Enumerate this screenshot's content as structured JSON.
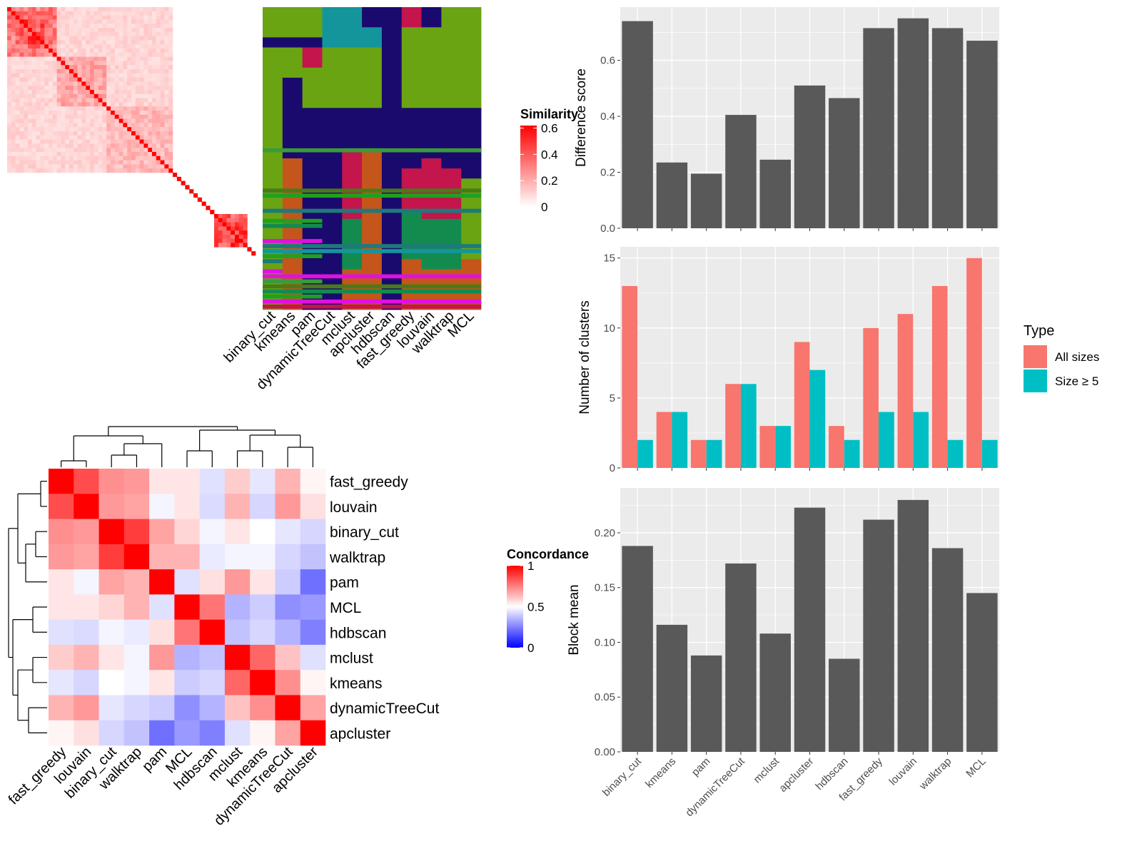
{
  "colors": {
    "hm_low": "#ffffff",
    "hm_high": "#ff0000",
    "conc_low": "#0000ff",
    "conc_mid": "#ffffff",
    "conc_high": "#ff0000",
    "bar_fill": "#595959",
    "panel_bg": "#ebebeb",
    "grid": "#ffffff",
    "all_sizes": "#f8766d",
    "size5": "#00bfc4",
    "cluster_palette": [
      "#1a0a6e",
      "#6aa412",
      "#c4154c",
      "#14959c",
      "#c4561b",
      "#138b4f",
      "#20a020",
      "#e010e0",
      "#1e7a7a",
      "#4a7a18",
      "#3a9a3a"
    ]
  },
  "chart_data": [
    {
      "type": "heatmap",
      "panel": "similarity",
      "legend_title": "Similarity",
      "legend_ticks": [
        "0.6",
        "0.4",
        "0.2",
        "0"
      ],
      "legend_values": [
        0.6,
        0.4,
        0.2,
        0
      ],
      "n_items": 60,
      "blocks": [
        [
          0,
          12,
          0.38
        ],
        [
          12,
          24,
          0.25
        ],
        [
          3,
          9,
          0.52
        ],
        [
          24,
          40,
          0.2
        ],
        [
          0,
          40,
          0.12
        ],
        [
          50,
          58,
          0.45
        ],
        [
          53,
          58,
          0.55
        ]
      ],
      "diagonal": 0.62
    },
    {
      "type": "heatmap",
      "panel": "cluster_assignments",
      "columns": [
        "binary_cut",
        "kmeans",
        "pam",
        "dynamicTreeCut",
        "mclust",
        "apcluster",
        "hdbscan",
        "fast_greedy",
        "louvain",
        "walktrap",
        "MCL"
      ],
      "segments": [
        [
          [
            0,
            6,
            1
          ],
          [
            6,
            8,
            0
          ],
          [
            8,
            60,
            1
          ]
        ],
        [
          [
            0,
            6,
            1
          ],
          [
            6,
            8,
            0
          ],
          [
            8,
            14,
            1
          ],
          [
            14,
            30,
            0
          ],
          [
            30,
            60,
            4
          ]
        ],
        [
          [
            0,
            6,
            1
          ],
          [
            6,
            8,
            0
          ],
          [
            8,
            12,
            2
          ],
          [
            12,
            20,
            1
          ],
          [
            20,
            30,
            0
          ],
          [
            30,
            60,
            0
          ]
        ],
        [
          [
            0,
            8,
            3
          ],
          [
            8,
            20,
            1
          ],
          [
            20,
            30,
            0
          ],
          [
            30,
            60,
            0
          ]
        ],
        [
          [
            0,
            8,
            3
          ],
          [
            8,
            20,
            1
          ],
          [
            20,
            28,
            0
          ],
          [
            28,
            42,
            2
          ],
          [
            42,
            52,
            5
          ],
          [
            52,
            60,
            4
          ]
        ],
        [
          [
            0,
            4,
            0
          ],
          [
            4,
            8,
            3
          ],
          [
            8,
            20,
            1
          ],
          [
            20,
            28,
            0
          ],
          [
            28,
            34,
            4
          ],
          [
            34,
            60,
            4
          ]
        ],
        [
          [
            0,
            60,
            0
          ]
        ],
        [
          [
            0,
            4,
            2
          ],
          [
            4,
            20,
            1
          ],
          [
            20,
            32,
            0
          ],
          [
            32,
            40,
            2
          ],
          [
            40,
            50,
            5
          ],
          [
            50,
            60,
            4
          ]
        ],
        [
          [
            0,
            4,
            0
          ],
          [
            4,
            20,
            1
          ],
          [
            20,
            30,
            0
          ],
          [
            30,
            42,
            2
          ],
          [
            42,
            52,
            5
          ],
          [
            52,
            60,
            4
          ]
        ],
        [
          [
            0,
            20,
            1
          ],
          [
            20,
            32,
            0
          ],
          [
            32,
            42,
            2
          ],
          [
            42,
            52,
            5
          ],
          [
            52,
            60,
            4
          ]
        ],
        [
          [
            0,
            20,
            1
          ],
          [
            20,
            34,
            0
          ],
          [
            34,
            50,
            1
          ],
          [
            50,
            60,
            4
          ]
        ]
      ],
      "stripes": [
        [
          28,
          0,
          11,
          10
        ],
        [
          36,
          0,
          11,
          9
        ],
        [
          37,
          0,
          11,
          6
        ],
        [
          40,
          0,
          11,
          8
        ],
        [
          42,
          0,
          3,
          6
        ],
        [
          43,
          0,
          3,
          5
        ],
        [
          46,
          0,
          3,
          7
        ],
        [
          47,
          0,
          11,
          8
        ],
        [
          48,
          0,
          11,
          3
        ],
        [
          49,
          0,
          3,
          6
        ],
        [
          50,
          0,
          1,
          8
        ],
        [
          52,
          0,
          1,
          7
        ],
        [
          53,
          0,
          11,
          7
        ],
        [
          54,
          0,
          3,
          10
        ],
        [
          55,
          0,
          11,
          9
        ],
        [
          56,
          0,
          11,
          5
        ],
        [
          57,
          0,
          3,
          6
        ],
        [
          58,
          0,
          11,
          7
        ],
        [
          59,
          0,
          11,
          2
        ]
      ]
    },
    {
      "type": "heatmap",
      "panel": "concordance",
      "legend_title": "Concordance",
      "legend_ticks": [
        "1",
        "0.5",
        "0"
      ],
      "legend_values": [
        1,
        0.5,
        0
      ],
      "rows": [
        "fast_greedy",
        "louvain",
        "binary_cut",
        "walktrap",
        "pam",
        "MCL",
        "hdbscan",
        "mclust",
        "kmeans",
        "dynamicTreeCut",
        "apcluster"
      ],
      "columns": [
        "fast_greedy",
        "louvain",
        "binary_cut",
        "walktrap",
        "pam",
        "MCL",
        "hdbscan",
        "mclust",
        "kmeans",
        "dynamicTreeCut",
        "apcluster"
      ],
      "values": [
        [
          1.0,
          0.85,
          0.72,
          0.7,
          0.55,
          0.55,
          0.44,
          0.6,
          0.45,
          0.65,
          0.52
        ],
        [
          0.85,
          1.0,
          0.7,
          0.68,
          0.48,
          0.55,
          0.43,
          0.65,
          0.42,
          0.7,
          0.56
        ],
        [
          0.72,
          0.7,
          1.0,
          0.88,
          0.68,
          0.58,
          0.48,
          0.55,
          0.5,
          0.45,
          0.42
        ],
        [
          0.7,
          0.68,
          0.88,
          1.0,
          0.65,
          0.65,
          0.46,
          0.48,
          0.48,
          0.42,
          0.38
        ],
        [
          0.55,
          0.48,
          0.68,
          0.65,
          1.0,
          0.44,
          0.56,
          0.7,
          0.55,
          0.4,
          0.22
        ],
        [
          0.55,
          0.55,
          0.58,
          0.65,
          0.44,
          1.0,
          0.77,
          0.35,
          0.4,
          0.28,
          0.3
        ],
        [
          0.44,
          0.43,
          0.48,
          0.46,
          0.56,
          0.77,
          1.0,
          0.38,
          0.42,
          0.35,
          0.25
        ],
        [
          0.6,
          0.65,
          0.55,
          0.48,
          0.7,
          0.35,
          0.38,
          1.0,
          0.8,
          0.62,
          0.44
        ],
        [
          0.45,
          0.42,
          0.5,
          0.48,
          0.55,
          0.4,
          0.42,
          0.8,
          1.0,
          0.72,
          0.52
        ],
        [
          0.65,
          0.7,
          0.45,
          0.42,
          0.4,
          0.28,
          0.35,
          0.62,
          0.72,
          1.0,
          0.68
        ],
        [
          0.52,
          0.56,
          0.42,
          0.38,
          0.22,
          0.3,
          0.25,
          0.44,
          0.52,
          0.68,
          1.0
        ]
      ]
    },
    {
      "type": "bar",
      "panel": "difference_score",
      "categories": [
        "binary_cut",
        "kmeans",
        "pam",
        "dynamicTreeCut",
        "mclust",
        "apcluster",
        "hdbscan",
        "fast_greedy",
        "louvain",
        "walktrap",
        "MCL"
      ],
      "values": [
        0.74,
        0.235,
        0.195,
        0.405,
        0.245,
        0.51,
        0.465,
        0.715,
        0.75,
        0.715,
        0.67
      ],
      "xlabel": "",
      "ylabel": "Difference score",
      "ylim": [
        0,
        0.79
      ],
      "yticks": [
        0.0,
        0.2,
        0.4,
        0.6
      ],
      "ytick_labels": [
        "0.0",
        "0.2",
        "0.4",
        "0.6"
      ],
      "grid": true
    },
    {
      "type": "bar",
      "panel": "number_of_clusters",
      "categories": [
        "binary_cut",
        "kmeans",
        "pam",
        "dynamicTreeCut",
        "mclust",
        "apcluster",
        "hdbscan",
        "fast_greedy",
        "louvain",
        "walktrap",
        "MCL"
      ],
      "series": [
        {
          "name": "All sizes",
          "values": [
            13,
            4,
            2,
            6,
            3,
            9,
            3,
            10,
            11,
            13,
            15
          ]
        },
        {
          "name": "Size ≥ 5",
          "values": [
            2,
            4,
            2,
            6,
            3,
            7,
            2,
            4,
            4,
            2,
            2
          ]
        }
      ],
      "xlabel": "",
      "ylabel": "Number of clusters",
      "ylim": [
        0,
        15.8
      ],
      "yticks": [
        0,
        5,
        10,
        15
      ],
      "ytick_labels": [
        "0",
        "5",
        "10",
        "15"
      ],
      "legend_title": "Type",
      "legend_position": "right",
      "grid": true
    },
    {
      "type": "bar",
      "panel": "block_mean",
      "categories": [
        "binary_cut",
        "kmeans",
        "pam",
        "dynamicTreeCut",
        "mclust",
        "apcluster",
        "hdbscan",
        "fast_greedy",
        "louvain",
        "walktrap",
        "MCL"
      ],
      "values": [
        0.188,
        0.116,
        0.088,
        0.172,
        0.108,
        0.223,
        0.085,
        0.212,
        0.23,
        0.186,
        0.145
      ],
      "xlabel": "",
      "ylabel": "Block mean",
      "ylim": [
        0,
        0.241
      ],
      "yticks": [
        0.0,
        0.05,
        0.1,
        0.15,
        0.2
      ],
      "ytick_labels": [
        "0.00",
        "0.05",
        "0.10",
        "0.15",
        "0.20"
      ],
      "grid": true
    }
  ]
}
